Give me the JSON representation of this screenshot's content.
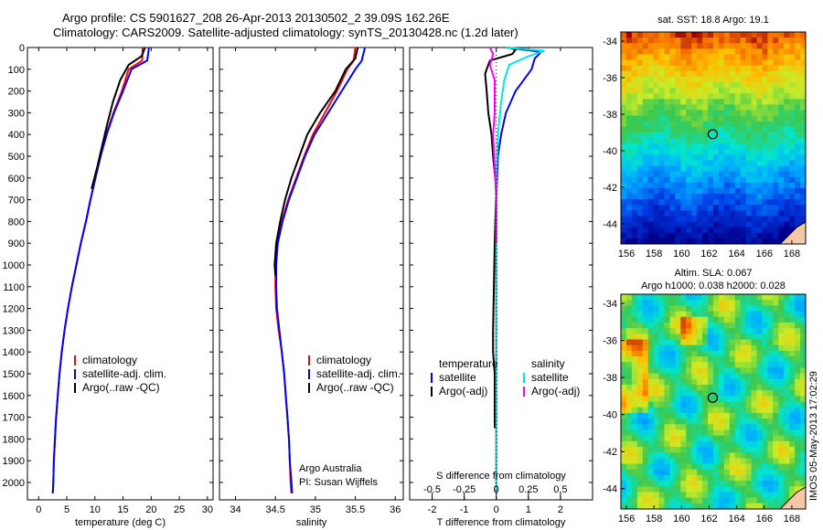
{
  "header": {
    "line1": "Argo profile: CS 5901627_208 26-Apr-2013 20130502_2 39.09S 162.26E",
    "line2": "Climatology: CARS2009. Satellite-adjusted climatology: synTS_20130428.nc (1.2d later)"
  },
  "timestamp": "IMOS 05-May-2013 17:02:29",
  "colors": {
    "climatology": "#ff0000",
    "satellite": "#0000ff",
    "argo": "#000000",
    "sat_salinity": "#00e5e5",
    "argo_salinity_adj": "#ff00ff"
  },
  "chart_data": [
    {
      "type": "line",
      "panel": "temperature",
      "xlabel": "temperature (deg C)",
      "ylabel": "",
      "xlim": [
        -2,
        31
      ],
      "ylim": [
        2080,
        0
      ],
      "xticks": [
        "0",
        "5",
        "10",
        "15",
        "20",
        "25",
        "30"
      ],
      "yticks": [
        "0",
        "100",
        "200",
        "300",
        "400",
        "500",
        "600",
        "700",
        "800",
        "900",
        "1000",
        "1100",
        "1200",
        "1300",
        "1400",
        "1500",
        "1600",
        "1700",
        "1800",
        "1900",
        "2000"
      ],
      "legend": [
        "climatology",
        "satellite-adj. clim.",
        "Argo(..raw -QC)"
      ],
      "series": [
        {
          "name": "climatology",
          "color": "#ff0000",
          "points": [
            [
              18.5,
              0
            ],
            [
              18.4,
              60
            ],
            [
              16,
              100
            ],
            [
              14.8,
              200
            ],
            [
              13.3,
              300
            ],
            [
              12,
              400
            ],
            [
              11,
              500
            ],
            [
              10.1,
              600
            ],
            [
              9.2,
              700
            ],
            [
              8.4,
              800
            ],
            [
              7.5,
              900
            ],
            [
              6.7,
              1000
            ],
            [
              5.9,
              1100
            ],
            [
              5.2,
              1200
            ],
            [
              4.6,
              1300
            ],
            [
              4.1,
              1400
            ],
            [
              3.7,
              1500
            ],
            [
              3.4,
              1600
            ],
            [
              3.1,
              1700
            ],
            [
              2.9,
              1800
            ],
            [
              2.7,
              1900
            ],
            [
              2.6,
              2000
            ],
            [
              2.5,
              2050
            ]
          ]
        },
        {
          "name": "satellite-adj. clim.",
          "color": "#0000ff",
          "points": [
            [
              19.6,
              0
            ],
            [
              19.3,
              60
            ],
            [
              16.5,
              100
            ],
            [
              15,
              200
            ],
            [
              13.4,
              300
            ],
            [
              12.1,
              400
            ],
            [
              11,
              500
            ],
            [
              10.1,
              600
            ],
            [
              9.2,
              700
            ],
            [
              8.4,
              800
            ],
            [
              7.5,
              900
            ],
            [
              6.7,
              1000
            ],
            [
              5.9,
              1100
            ],
            [
              5.2,
              1200
            ],
            [
              4.6,
              1300
            ],
            [
              4.1,
              1400
            ],
            [
              3.7,
              1500
            ],
            [
              3.4,
              1600
            ],
            [
              3.1,
              1700
            ],
            [
              2.9,
              1800
            ],
            [
              2.7,
              1900
            ],
            [
              2.6,
              2000
            ],
            [
              2.5,
              2050
            ]
          ]
        },
        {
          "name": "Argo(..raw -QC)",
          "color": "#000000",
          "points": [
            [
              18.9,
              0
            ],
            [
              18.3,
              40
            ],
            [
              16,
              80
            ],
            [
              14.5,
              150
            ],
            [
              13.2,
              250
            ],
            [
              12.2,
              350
            ],
            [
              11.3,
              450
            ],
            [
              10.4,
              550
            ],
            [
              9.4,
              650
            ]
          ]
        }
      ]
    },
    {
      "type": "line",
      "panel": "salinity",
      "xlabel": "salinity",
      "xlim": [
        33.8,
        36.1
      ],
      "ylim": [
        2080,
        0
      ],
      "xticks": [
        "34",
        "34.5",
        "35",
        "35.5",
        "36"
      ],
      "legend": [
        "climatology",
        "satellite-adj. clim.",
        "Argo(..raw -QC)"
      ],
      "annotation": [
        "Argo Australia",
        "PI: Susan Wijffels"
      ],
      "series": [
        {
          "name": "climatology",
          "color": "#ff0000",
          "points": [
            [
              35.5,
              0
            ],
            [
              35.48,
              60
            ],
            [
              35.4,
              100
            ],
            [
              35.27,
              200
            ],
            [
              35.12,
              300
            ],
            [
              34.97,
              400
            ],
            [
              34.86,
              500
            ],
            [
              34.76,
              600
            ],
            [
              34.66,
              700
            ],
            [
              34.58,
              800
            ],
            [
              34.52,
              900
            ],
            [
              34.5,
              1000
            ],
            [
              34.5,
              1100
            ],
            [
              34.51,
              1200
            ],
            [
              34.54,
              1300
            ],
            [
              34.58,
              1400
            ],
            [
              34.61,
              1500
            ],
            [
              34.63,
              1600
            ],
            [
              34.65,
              1700
            ],
            [
              34.67,
              1800
            ],
            [
              34.68,
              1900
            ],
            [
              34.69,
              2000
            ],
            [
              34.7,
              2050
            ]
          ]
        },
        {
          "name": "satellite-adj. clim.",
          "color": "#0000ff",
          "points": [
            [
              35.62,
              0
            ],
            [
              35.58,
              60
            ],
            [
              35.5,
              100
            ],
            [
              35.33,
              200
            ],
            [
              35.16,
              300
            ],
            [
              34.99,
              400
            ],
            [
              34.87,
              500
            ],
            [
              34.77,
              600
            ],
            [
              34.67,
              700
            ],
            [
              34.59,
              800
            ],
            [
              34.53,
              900
            ],
            [
              34.51,
              1000
            ],
            [
              34.51,
              1100
            ],
            [
              34.52,
              1200
            ],
            [
              34.55,
              1300
            ],
            [
              34.58,
              1400
            ],
            [
              34.61,
              1500
            ],
            [
              34.63,
              1600
            ],
            [
              34.65,
              1700
            ],
            [
              34.67,
              1800
            ],
            [
              34.68,
              1900
            ],
            [
              34.7,
              2000
            ],
            [
              34.71,
              2050
            ]
          ]
        },
        {
          "name": "Argo(..raw -QC)",
          "color": "#000000",
          "points": [
            [
              35.53,
              0
            ],
            [
              35.5,
              50
            ],
            [
              35.38,
              100
            ],
            [
              35.25,
              200
            ],
            [
              35.06,
              300
            ],
            [
              34.9,
              400
            ],
            [
              34.8,
              500
            ],
            [
              34.7,
              600
            ],
            [
              34.62,
              700
            ],
            [
              34.56,
              800
            ],
            [
              34.51,
              900
            ],
            [
              34.49,
              1000
            ],
            [
              34.5,
              1050
            ]
          ]
        }
      ]
    },
    {
      "type": "line",
      "panel": "difference",
      "xlabel": "T difference from climatology",
      "xlabel2": "S difference from climatology",
      "xlim": [
        -2.7,
        3
      ],
      "ylim": [
        2080,
        0
      ],
      "xticks": [
        "-2",
        "-1",
        "0",
        "1",
        "2"
      ],
      "xticks2": [
        "-0.5",
        "-0.25",
        "0",
        "0.25",
        "0.5"
      ],
      "legend": [
        "temperature",
        "satellite",
        "Argo(-adj)",
        "salinity",
        "satellite",
        "Argo(-adj)"
      ],
      "series": [
        {
          "name": "satellite",
          "color": "#0000ff",
          "points": [
            [
              0.3,
              0
            ],
            [
              1.4,
              20
            ],
            [
              1.2,
              50
            ],
            [
              1.1,
              100
            ],
            [
              0.6,
              200
            ],
            [
              0.3,
              300
            ],
            [
              0.15,
              400
            ],
            [
              0.05,
              500
            ],
            [
              0,
              700
            ],
            [
              0,
              2050
            ]
          ]
        },
        {
          "name": "Argo(-adj)",
          "color": "#000000",
          "points": [
            [
              0.4,
              0
            ],
            [
              0.6,
              10
            ],
            [
              0.5,
              30
            ],
            [
              -0.2,
              60
            ],
            [
              -0.35,
              120
            ],
            [
              -0.3,
              200
            ],
            [
              -0.25,
              300
            ],
            [
              -0.15,
              400
            ],
            [
              -0.1,
              500
            ],
            [
              0,
              650
            ],
            [
              -0.05,
              900
            ],
            [
              -0.1,
              1300
            ],
            [
              -0.1,
              1400
            ],
            [
              -0.05,
              1500
            ],
            [
              -0.05,
              1750
            ]
          ]
        },
        {
          "name": "satellite",
          "color": "#00e5e5",
          "points": [
            [
              0.3,
              0
            ],
            [
              1.5,
              15
            ],
            [
              1,
              40
            ],
            [
              0.4,
              80
            ],
            [
              0.25,
              150
            ],
            [
              0.15,
              250
            ],
            [
              0.05,
              400
            ],
            [
              0,
              600
            ],
            [
              0,
              2050
            ]
          ]
        },
        {
          "name": "Argo(-adj)",
          "color": "#ff00ff",
          "points": [
            [
              -0.2,
              0
            ],
            [
              -0.1,
              30
            ],
            [
              -0.2,
              80
            ],
            [
              -0.05,
              150
            ],
            [
              -0.05,
              300
            ],
            [
              -0.1,
              400
            ],
            [
              -0.05,
              550
            ],
            [
              0,
              700
            ],
            [
              0,
              900
            ]
          ]
        }
      ]
    },
    {
      "type": "heatmap",
      "panel": "sst-map",
      "title": "sat. SST: 18.8 Argo: 19.1",
      "xticks": [
        "156",
        "158",
        "160",
        "162",
        "164",
        "166",
        "168"
      ],
      "yticks": [
        "-34",
        "-36",
        "-38",
        "-40",
        "-42",
        "-44"
      ],
      "xlim": [
        155.6,
        169
      ],
      "ylim": [
        -45.1,
        -33.5
      ],
      "marker": {
        "lon": 162.26,
        "lat": -39.09
      }
    },
    {
      "type": "heatmap",
      "panel": "sla-map",
      "title": "Altim. SLA: 0.067",
      "subtitle": "Argo h1000: 0.038 h2000: 0.028",
      "xticks": [
        "156",
        "158",
        "160",
        "162",
        "164",
        "166",
        "168"
      ],
      "yticks": [
        "-34",
        "-36",
        "-38",
        "-40",
        "-42",
        "-44"
      ],
      "xlim": [
        155.6,
        169
      ],
      "ylim": [
        -45.1,
        -33.5
      ],
      "marker": {
        "lon": 162.26,
        "lat": -39.09
      }
    }
  ]
}
